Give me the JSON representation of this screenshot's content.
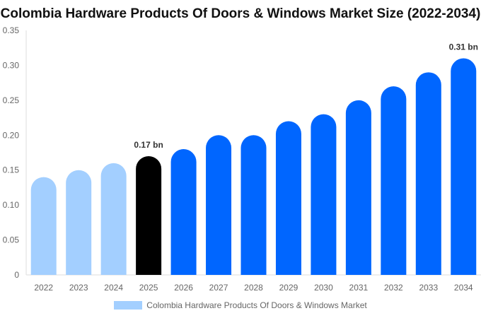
{
  "chart_data": {
    "type": "bar",
    "title": "Colombia Hardware Products Of Doors & Windows Market Size (2022-2034)",
    "categories": [
      "2022",
      "2023",
      "2024",
      "2025",
      "2026",
      "2027",
      "2028",
      "2029",
      "2030",
      "2031",
      "2032",
      "2033",
      "2034"
    ],
    "series": [
      {
        "name": "Colombia Hardware Products Of Doors & Windows Market",
        "values": [
          0.14,
          0.15,
          0.16,
          0.17,
          0.18,
          0.2,
          0.2,
          0.22,
          0.23,
          0.25,
          0.27,
          0.29,
          0.31
        ]
      }
    ],
    "ylim": [
      0,
      0.35
    ],
    "yticks": [
      "0",
      "0.05",
      "0.10",
      "0.15",
      "0.20",
      "0.25",
      "0.30",
      "0.35"
    ],
    "data_labels": {
      "3": "0.17 bn",
      "12": "0.31 bn"
    },
    "colors": {
      "historical": "#a3cfff",
      "current": "#000000",
      "forecast": "#0066ff"
    },
    "legend_position": "bottom",
    "grid": false
  }
}
